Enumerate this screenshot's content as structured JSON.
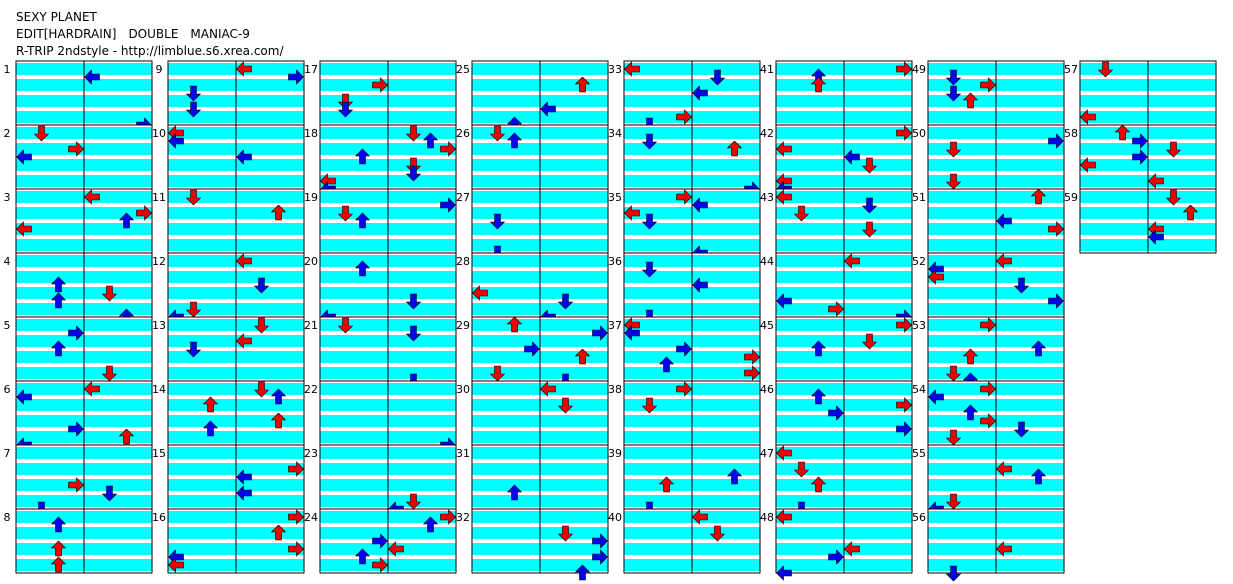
{
  "header": {
    "title": "SEXY PLANET",
    "difficulty": "EDIT[HARDRAIN]　DOUBLE　MANIAC-9",
    "credit": "R-TRIP 2ndstyle - http://limblue.s6.xrea.com/"
  },
  "measures": [
    "1",
    "2",
    "3",
    "4",
    "5",
    "6",
    "7",
    "8",
    "9",
    "10",
    "11",
    "12",
    "13",
    "14",
    "15",
    "16",
    "17",
    "18",
    "19",
    "20",
    "21",
    "22",
    "23",
    "24",
    "25",
    "26",
    "27",
    "28",
    "29",
    "30",
    "31",
    "32",
    "33",
    "34",
    "35",
    "36",
    "37",
    "38",
    "39",
    "40",
    "41",
    "42",
    "43",
    "44",
    "45",
    "46",
    "47",
    "48",
    "49",
    "50",
    "51",
    "52",
    "53",
    "54",
    "55",
    "56",
    "57",
    "58",
    "59"
  ]
}
